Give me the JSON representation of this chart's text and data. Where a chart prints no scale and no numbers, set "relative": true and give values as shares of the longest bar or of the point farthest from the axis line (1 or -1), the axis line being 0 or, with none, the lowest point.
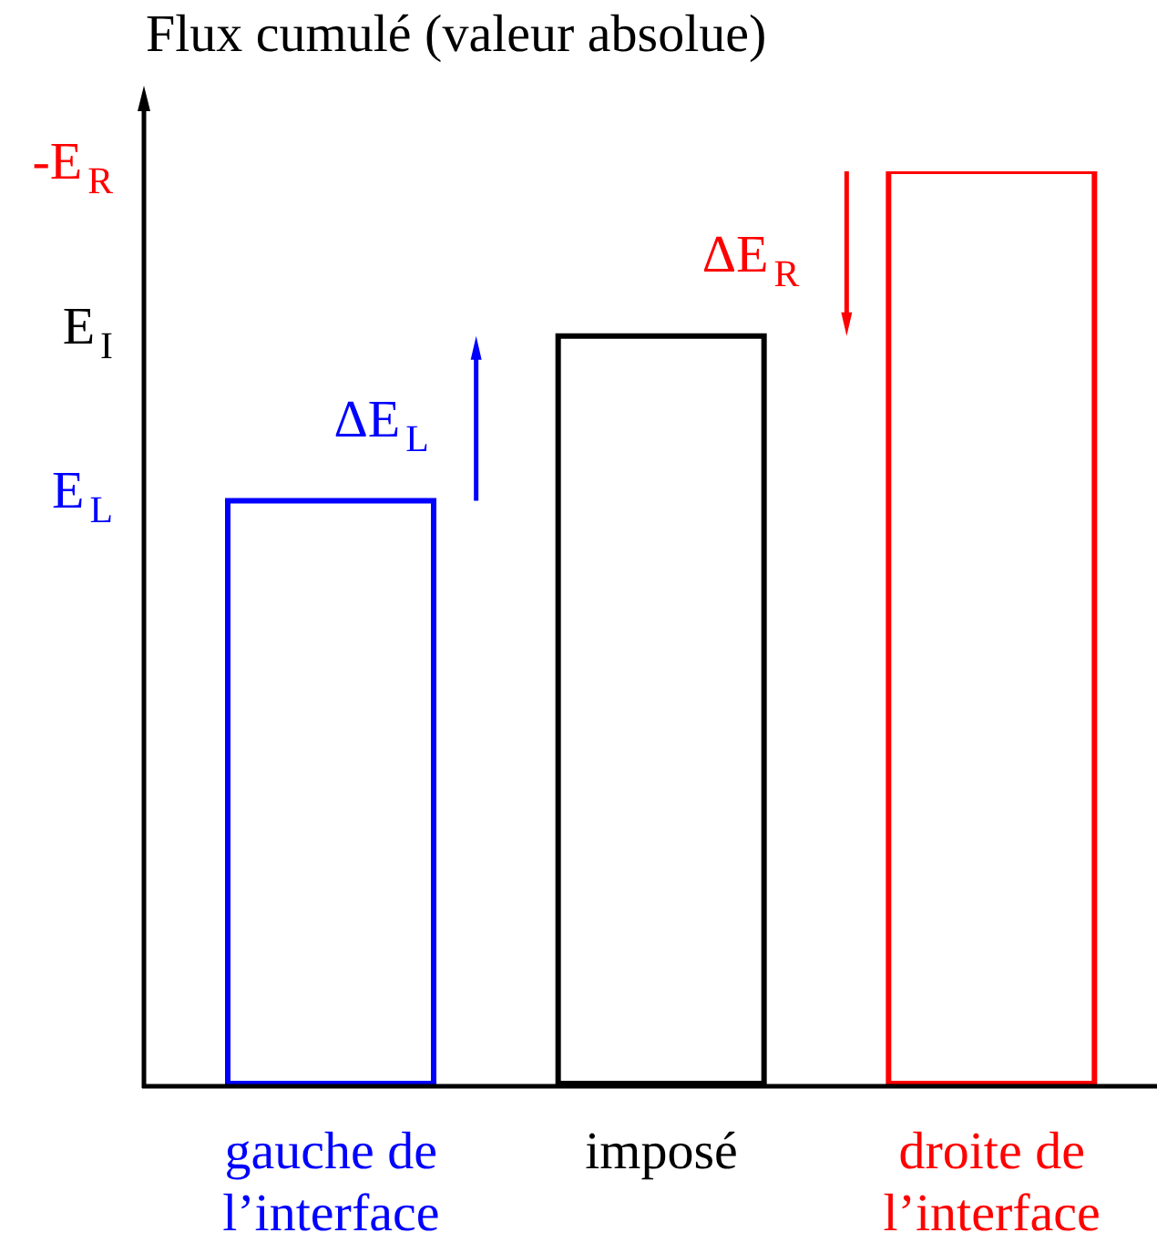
{
  "chart_data": {
    "type": "bar",
    "ylabel": "Flux cumulé (valeur absolue)",
    "categories": [
      "gauche de\nl’interface",
      "imposé",
      "droite de\nl’interface"
    ],
    "values": [
      0.64,
      0.82,
      1
    ],
    "colors": [
      "#0000ff",
      "#000000",
      "#ff0000"
    ],
    "relative": true,
    "annotations": [
      "E$_{L}$",
      "E$_{I}$",
      "-E$_{R}$",
      "ΔE$_{L}$",
      "ΔE$_{R}$"
    ]
  }
}
